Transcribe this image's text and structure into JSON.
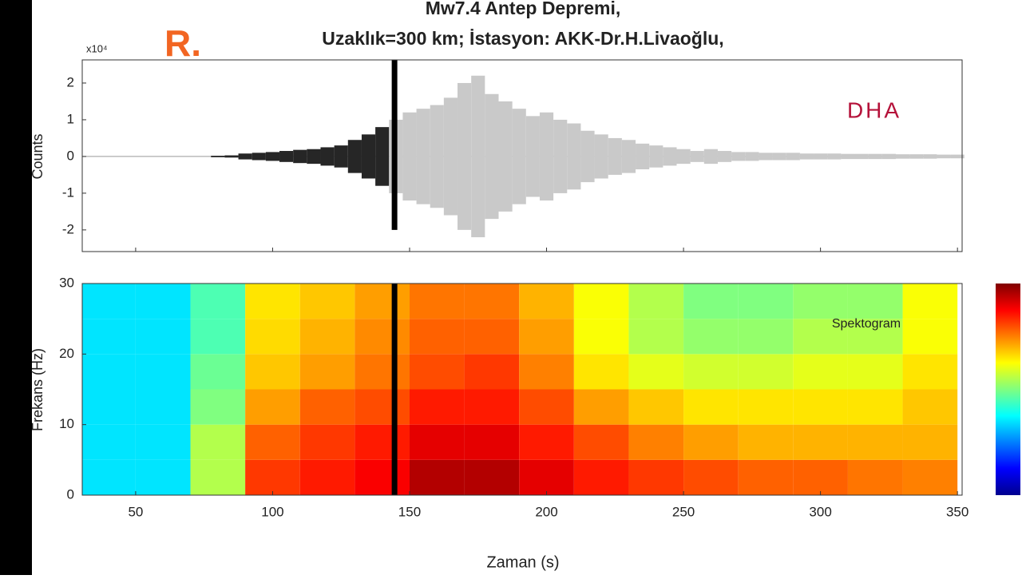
{
  "watermarks": [
    "R.",
    "DHA"
  ],
  "chart_data": [
    {
      "type": "waveform",
      "title": [
        "Mw7.4 Antep Depremi,",
        "Uzaklık=300 km; İstasyon: AKK-Dr.H.Livaoğlu,"
      ],
      "y_label": "Counts",
      "y_multiplier": "x10⁴",
      "x": [
        80,
        85,
        90,
        95,
        100,
        105,
        110,
        115,
        120,
        125,
        130,
        135,
        140,
        145,
        150,
        155,
        160,
        165,
        170,
        175,
        180,
        185,
        190,
        195,
        200,
        205,
        210,
        215,
        220,
        225,
        230,
        235,
        240,
        245,
        250,
        255,
        260,
        265,
        270,
        275,
        280,
        285,
        290,
        295,
        300,
        305,
        310,
        315,
        320,
        325,
        330,
        335,
        340,
        345,
        350
      ],
      "values": [
        0.02,
        0.03,
        0.08,
        0.1,
        0.12,
        0.15,
        0.18,
        0.2,
        0.25,
        0.3,
        0.45,
        0.6,
        0.8,
        1.0,
        1.2,
        1.3,
        1.4,
        1.6,
        2.0,
        2.2,
        1.7,
        1.5,
        1.3,
        1.1,
        1.2,
        1.0,
        0.9,
        0.7,
        0.6,
        0.5,
        0.45,
        0.35,
        0.3,
        0.25,
        0.2,
        0.15,
        0.2,
        0.15,
        0.12,
        0.12,
        0.1,
        0.1,
        0.1,
        0.08,
        0.08,
        0.08,
        0.07,
        0.07,
        0.07,
        0.07,
        0.06,
        0.06,
        0.06,
        0.05,
        0.05
      ],
      "color_before": "#262626",
      "color_after": "#c9c9c9",
      "marker_x": 144.5,
      "marker_color": "#000000",
      "xlim": [
        30.5,
        351.7
      ],
      "xticks": [
        50,
        100,
        150,
        200,
        250,
        300,
        350
      ],
      "ylim": [
        -2.59,
        2.63
      ],
      "yticks": [
        -2,
        -1,
        0,
        1,
        2
      ]
    },
    {
      "type": "heatmap",
      "annotation": "Spektogram",
      "x_label": "Zaman (s)",
      "y_label": "Frekans (Hz)",
      "x_edges": [
        30,
        50,
        70,
        90,
        110,
        130,
        150,
        170,
        190,
        210,
        230,
        250,
        270,
        290,
        310,
        330,
        350
      ],
      "y_edges": [
        0,
        5,
        10,
        15,
        20,
        25,
        30
      ],
      "z": [
        [
          0.35,
          0.35,
          0.55,
          0.82,
          0.85,
          0.88,
          0.95,
          0.95,
          0.9,
          0.85,
          0.82,
          0.8,
          0.78,
          0.78,
          0.76,
          0.75
        ],
        [
          0.35,
          0.35,
          0.55,
          0.78,
          0.82,
          0.85,
          0.9,
          0.9,
          0.85,
          0.8,
          0.75,
          0.72,
          0.7,
          0.7,
          0.7,
          0.7
        ],
        [
          0.35,
          0.35,
          0.5,
          0.72,
          0.78,
          0.8,
          0.85,
          0.85,
          0.8,
          0.72,
          0.68,
          0.65,
          0.65,
          0.65,
          0.65,
          0.68
        ],
        [
          0.35,
          0.35,
          0.48,
          0.68,
          0.72,
          0.76,
          0.8,
          0.82,
          0.75,
          0.65,
          0.6,
          0.58,
          0.58,
          0.6,
          0.6,
          0.65
        ],
        [
          0.35,
          0.35,
          0.45,
          0.66,
          0.7,
          0.74,
          0.78,
          0.78,
          0.72,
          0.62,
          0.55,
          0.52,
          0.52,
          0.55,
          0.55,
          0.62
        ],
        [
          0.35,
          0.35,
          0.45,
          0.65,
          0.68,
          0.72,
          0.76,
          0.76,
          0.7,
          0.62,
          0.55,
          0.5,
          0.5,
          0.52,
          0.52,
          0.62
        ]
      ],
      "colormap": "jet",
      "colorbar": true,
      "marker_x": 144.5,
      "marker_color": "#000000",
      "xlim": [
        30.5,
        351.7
      ],
      "xticks": [
        50,
        100,
        150,
        200,
        250,
        300,
        350
      ],
      "ylim": [
        0,
        30
      ],
      "yticks": [
        0,
        10,
        20,
        30
      ]
    }
  ]
}
